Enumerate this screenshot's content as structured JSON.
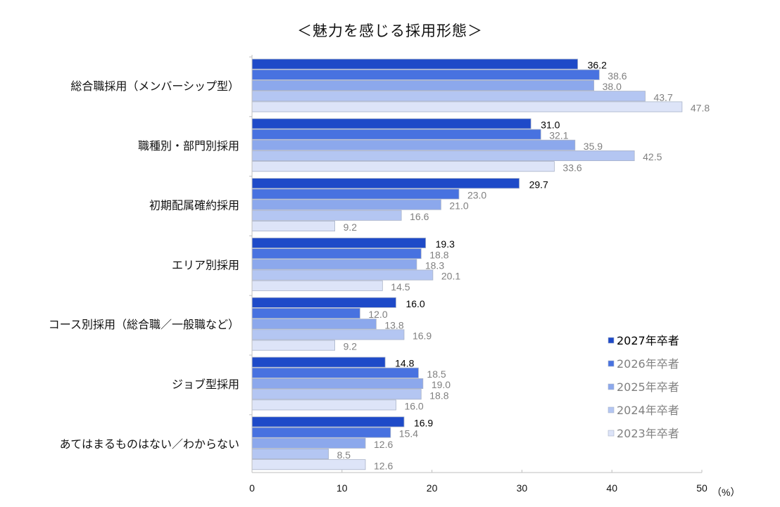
{
  "chart_data": {
    "type": "bar",
    "orientation": "horizontal",
    "title": "＜魅力を感じる採用形態＞",
    "xlabel": "",
    "ylabel": "",
    "unit_label": "（%）",
    "xlim": [
      0,
      50
    ],
    "xticks": [
      0,
      10,
      20,
      30,
      40,
      50
    ],
    "grid": false,
    "legend_position": "bottom-right",
    "categories": [
      "総合職採用（メンバーシップ型）",
      "職種別・部門別採用",
      "初期配属確約採用",
      "エリア別採用",
      "コース別採用（総合職／一般職など）",
      "ジョブ型採用",
      "あてはまるものはない／わからない"
    ],
    "series": [
      {
        "name": "2027年卒者",
        "color": "#1E4AC8",
        "label_color": "#000000",
        "values": [
          36.2,
          31.0,
          29.7,
          19.3,
          16.0,
          14.8,
          16.9
        ]
      },
      {
        "name": "2026年卒者",
        "color": "#4872E0",
        "label_color": "#808080",
        "values": [
          38.6,
          32.1,
          23.0,
          18.8,
          12.0,
          18.5,
          15.4
        ]
      },
      {
        "name": "2025年卒者",
        "color": "#8CA8EC",
        "label_color": "#808080",
        "values": [
          38.0,
          35.9,
          21.0,
          18.3,
          13.8,
          19.0,
          12.6
        ]
      },
      {
        "name": "2024年卒者",
        "color": "#B4C6F2",
        "label_color": "#808080",
        "values": [
          43.7,
          42.5,
          16.6,
          20.1,
          16.9,
          18.8,
          8.5
        ]
      },
      {
        "name": "2023年卒者",
        "color": "#DDE4F8",
        "label_color": "#808080",
        "values": [
          47.8,
          33.6,
          9.2,
          14.5,
          9.2,
          16.0,
          12.6
        ]
      }
    ]
  }
}
